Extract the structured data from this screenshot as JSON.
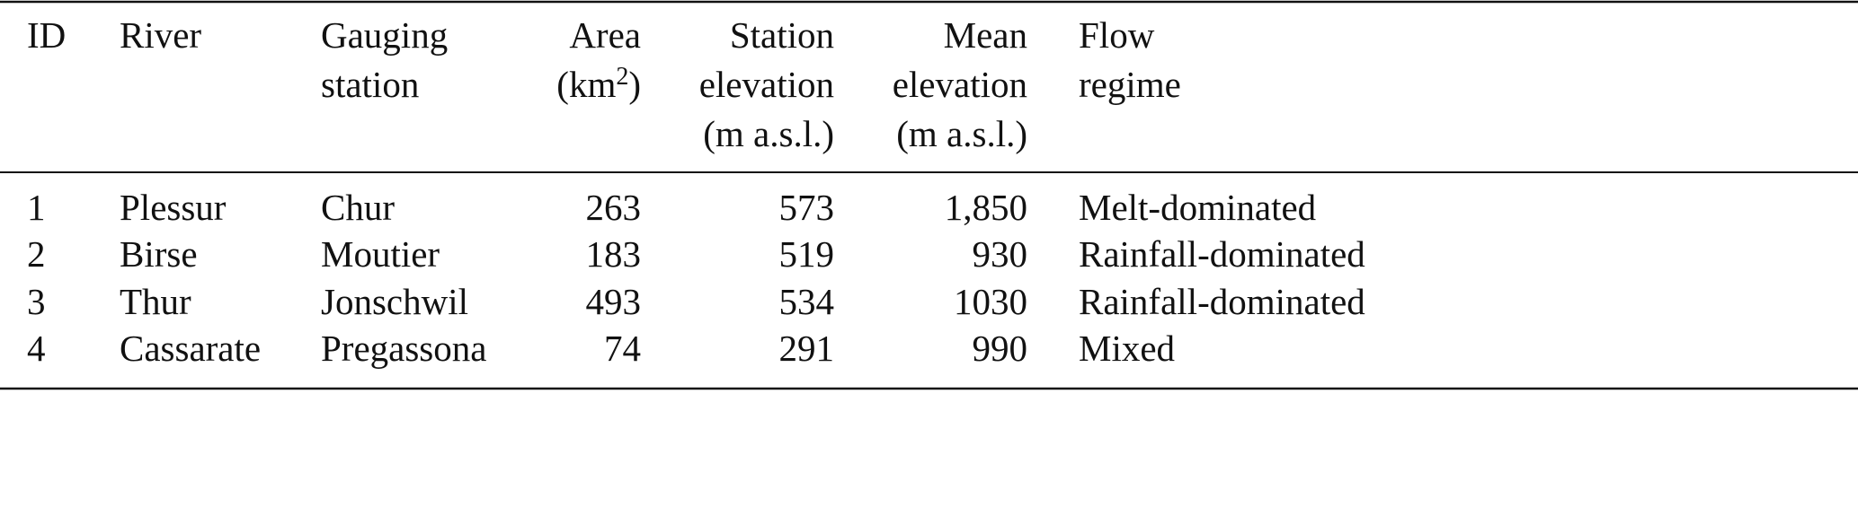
{
  "table": {
    "columns": [
      {
        "align": "left",
        "lines": [
          [
            "ID"
          ]
        ]
      },
      {
        "align": "left",
        "lines": [
          [
            "River"
          ]
        ]
      },
      {
        "align": "left",
        "lines": [
          [
            "Gauging"
          ],
          [
            "station"
          ]
        ]
      },
      {
        "align": "right",
        "lines": [
          [
            "Area"
          ],
          [
            "(km",
            {
              "sup": "2"
            },
            ")"
          ]
        ]
      },
      {
        "align": "right",
        "lines": [
          [
            "Station"
          ],
          [
            "elevation"
          ],
          [
            "(m a.s.l.)"
          ]
        ]
      },
      {
        "align": "right",
        "lines": [
          [
            "Mean"
          ],
          [
            "elevation"
          ],
          [
            "(m a.s.l.)"
          ]
        ]
      },
      {
        "align": "left",
        "lines": [
          [
            "Flow"
          ],
          [
            "regime"
          ]
        ]
      }
    ],
    "rows": [
      [
        "1",
        "Plessur",
        "Chur",
        "263",
        "573",
        "1,850",
        "Melt-dominated"
      ],
      [
        "2",
        "Birse",
        "Moutier",
        "183",
        "519",
        "930",
        "Rainfall-dominated"
      ],
      [
        "3",
        "Thur",
        "Jonschwil",
        "493",
        "534",
        "1030",
        "Rainfall-dominated"
      ],
      [
        "4",
        "Cassarate",
        "Pregassona",
        "74",
        "291",
        "990",
        "Mixed"
      ]
    ]
  }
}
